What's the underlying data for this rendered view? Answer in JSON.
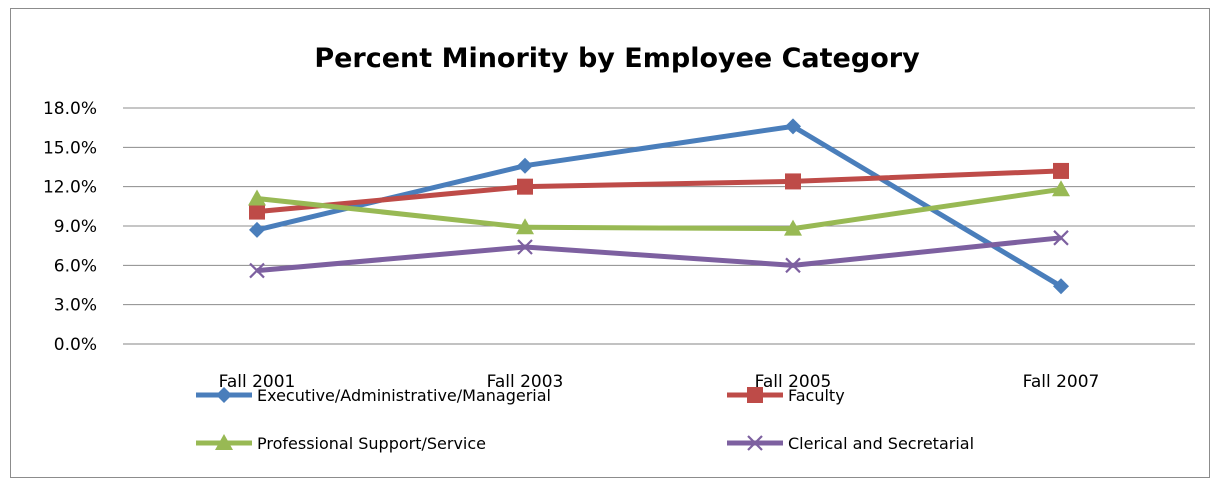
{
  "chart_data": {
    "type": "line",
    "title": "Percent Minority by Employee Category",
    "xlabel": "",
    "ylabel": "",
    "categories": [
      "Fall 2001",
      "Fall 2003",
      "Fall 2005",
      "Fall 2007"
    ],
    "y_ticks": [
      "0.0%",
      "3.0%",
      "6.0%",
      "9.0%",
      "12.0%",
      "15.0%",
      "18.0%"
    ],
    "ylim": [
      0,
      18
    ],
    "grid": true,
    "legend_position": "bottom",
    "series": [
      {
        "name": "Executive/Administrative/Managerial",
        "values": [
          8.7,
          13.6,
          16.6,
          4.4
        ],
        "color": "#4a7ebb",
        "marker": "diamond"
      },
      {
        "name": "Faculty",
        "values": [
          10.1,
          12.0,
          12.4,
          13.2
        ],
        "color": "#be4b48",
        "marker": "square"
      },
      {
        "name": "Professional Support/Service",
        "values": [
          11.1,
          8.9,
          8.8,
          11.8
        ],
        "color": "#98b954",
        "marker": "triangle"
      },
      {
        "name": "Clerical and Secretarial",
        "values": [
          5.6,
          7.4,
          6.0,
          8.1
        ],
        "color": "#7d60a0",
        "marker": "x"
      }
    ]
  }
}
